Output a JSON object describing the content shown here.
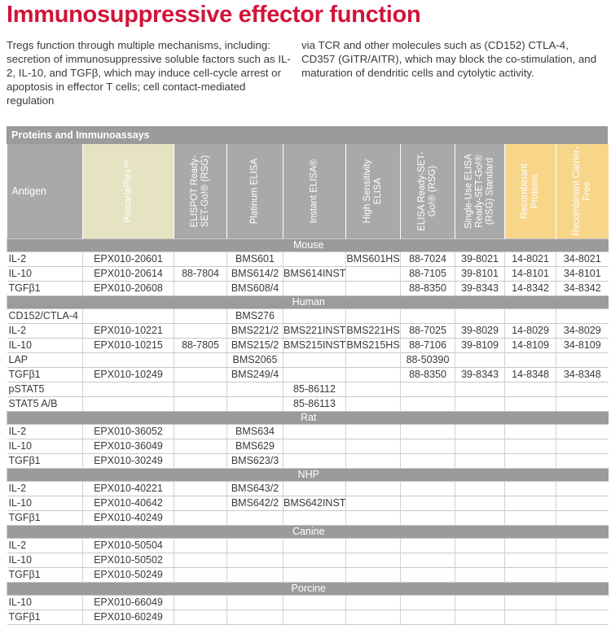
{
  "title": "Immunosuppressive effector function",
  "intro_left": "Tregs function through multiple mechanisms, including: secretion of immunosuppressive soluble factors such as IL-2, IL-10, and TGFβ, which may induce cell-cycle arrest or apoptosis in effector T cells; cell contact-mediated regulation",
  "intro_right": "via TCR and other molecules such as (CD152) CTLA-4, CD357 (GITR/AITR), which may block the co-stimulation, and maturation of dendritic cells and cytolytic activity.",
  "table": {
    "title": "Proteins and Immunoassays",
    "headers": [
      "Antigen",
      "ProcartaPlex™",
      "ELISPOT Ready-SET-Go!® (RSG)",
      "Platinum ELISA",
      "Instant ELISA®",
      "High Sensitivity ELISA",
      "ELISA Ready-SET-Go!® (RSG)",
      "Single-Use ELISA Ready-SET-Go!® (RSG) Standard",
      "Recombinant Proteins",
      "Recombinant Carrier-Free"
    ],
    "sections": [
      {
        "name": "Mouse",
        "rows": [
          [
            "IL-2",
            "EPX010-20601",
            "",
            "BMS601",
            "",
            "BMS601HS",
            "88-7024",
            "39-8021",
            "14-8021",
            "34-8021"
          ],
          [
            "IL-10",
            "EPX010-20614",
            "88-7804",
            "BMS614/2",
            "BMS614INST",
            "",
            "88-7105",
            "39-8101",
            "14-8101",
            "34-8101"
          ],
          [
            "TGFβ1",
            "EPX010-20608",
            "",
            "BMS608/4",
            "",
            "",
            "88-8350",
            "39-8343",
            "14-8342",
            "34-8342"
          ]
        ]
      },
      {
        "name": "Human",
        "rows": [
          [
            "CD152/CTLA-4",
            "",
            "",
            "BMS276",
            "",
            "",
            "",
            "",
            "",
            ""
          ],
          [
            "IL-2",
            "EPX010-10221",
            "",
            "BMS221/2",
            "BMS221INST",
            "BMS221HS",
            "88-7025",
            "39-8029",
            "14-8029",
            "34-8029"
          ],
          [
            "IL-10",
            "EPX010-10215",
            "88-7805",
            "BMS215/2",
            "BMS215INST",
            "BMS215HS",
            "88-7106",
            "39-8109",
            "14-8109",
            "34-8109"
          ],
          [
            "LAP",
            "",
            "",
            "BMS2065",
            "",
            "",
            "88-50390",
            "",
            "",
            ""
          ],
          [
            "TGFβ1",
            "EPX010-10249",
            "",
            "BMS249/4",
            "",
            "",
            "88-8350",
            "39-8343",
            "14-8348",
            "34-8348"
          ],
          [
            "pSTAT5",
            "",
            "",
            "",
            "85-86112",
            "",
            "",
            "",
            "",
            ""
          ],
          [
            "STAT5 A/B",
            "",
            "",
            "",
            "85-86113",
            "",
            "",
            "",
            "",
            ""
          ]
        ]
      },
      {
        "name": "Rat",
        "rows": [
          [
            "IL-2",
            "EPX010-36052",
            "",
            "BMS634",
            "",
            "",
            "",
            "",
            "",
            ""
          ],
          [
            "IL-10",
            "EPX010-36049",
            "",
            "BMS629",
            "",
            "",
            "",
            "",
            "",
            ""
          ],
          [
            "TGFβ1",
            "EPX010-30249",
            "",
            "BMS623/3",
            "",
            "",
            "",
            "",
            "",
            ""
          ]
        ]
      },
      {
        "name": "NHP",
        "rows": [
          [
            "IL-2",
            "EPX010-40221",
            "",
            "BMS643/2",
            "",
            "",
            "",
            "",
            "",
            ""
          ],
          [
            "IL-10",
            "EPX010-40642",
            "",
            "BMS642/2",
            "BMS642INST",
            "",
            "",
            "",
            "",
            ""
          ],
          [
            "TGFβ1",
            "EPX010-40249",
            "",
            "",
            "",
            "",
            "",
            "",
            "",
            ""
          ]
        ]
      },
      {
        "name": "Canine",
        "rows": [
          [
            "IL-2",
            "EPX010-50504",
            "",
            "",
            "",
            "",
            "",
            "",
            "",
            ""
          ],
          [
            "IL-10",
            "EPX010-50502",
            "",
            "",
            "",
            "",
            "",
            "",
            "",
            ""
          ],
          [
            "TGFβ1",
            "EPX010-50249",
            "",
            "",
            "",
            "",
            "",
            "",
            "",
            ""
          ]
        ]
      },
      {
        "name": "Porcine",
        "rows": [
          [
            "IL-10",
            "EPX010-66049",
            "",
            "",
            "",
            "",
            "",
            "",
            "",
            ""
          ],
          [
            "TGFβ1",
            "EPX010-60249",
            "",
            "",
            "",
            "",
            "",
            "",
            "",
            ""
          ]
        ]
      }
    ]
  }
}
